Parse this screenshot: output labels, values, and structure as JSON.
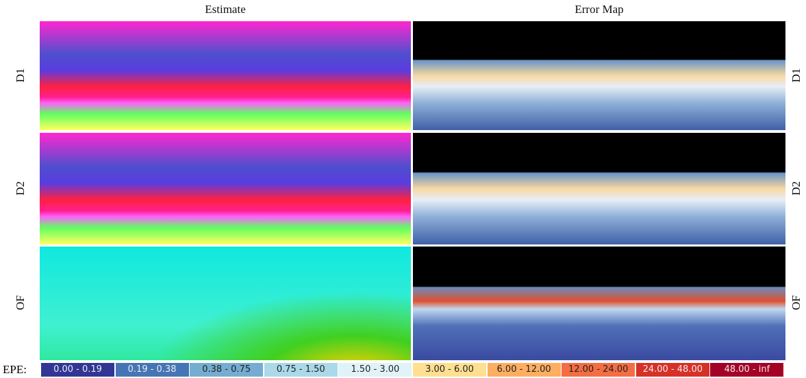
{
  "columns": [
    "Estimate",
    "Error Map"
  ],
  "rows": [
    "D1",
    "D2",
    "OF"
  ],
  "legend": {
    "label": "EPE:",
    "items": [
      {
        "label": "0.00 - 0.19",
        "color": "#313695"
      },
      {
        "label": "0.19 - 0.38",
        "color": "#4575b4"
      },
      {
        "label": "0.38 - 0.75",
        "color": "#74add1"
      },
      {
        "label": "0.75 - 1.50",
        "color": "#abd9e9"
      },
      {
        "label": "1.50 - 3.00",
        "color": "#e0f3f8"
      },
      {
        "label": "3.00 - 6.00",
        "color": "#fee090"
      },
      {
        "label": "6.00 - 12.00",
        "color": "#fdae61"
      },
      {
        "label": "12.00 - 24.00",
        "color": "#f46d43"
      },
      {
        "label": "24.00 - 48.00",
        "color": "#d73027"
      },
      {
        "label": "48.00 - inf",
        "color": "#a50026"
      }
    ]
  }
}
